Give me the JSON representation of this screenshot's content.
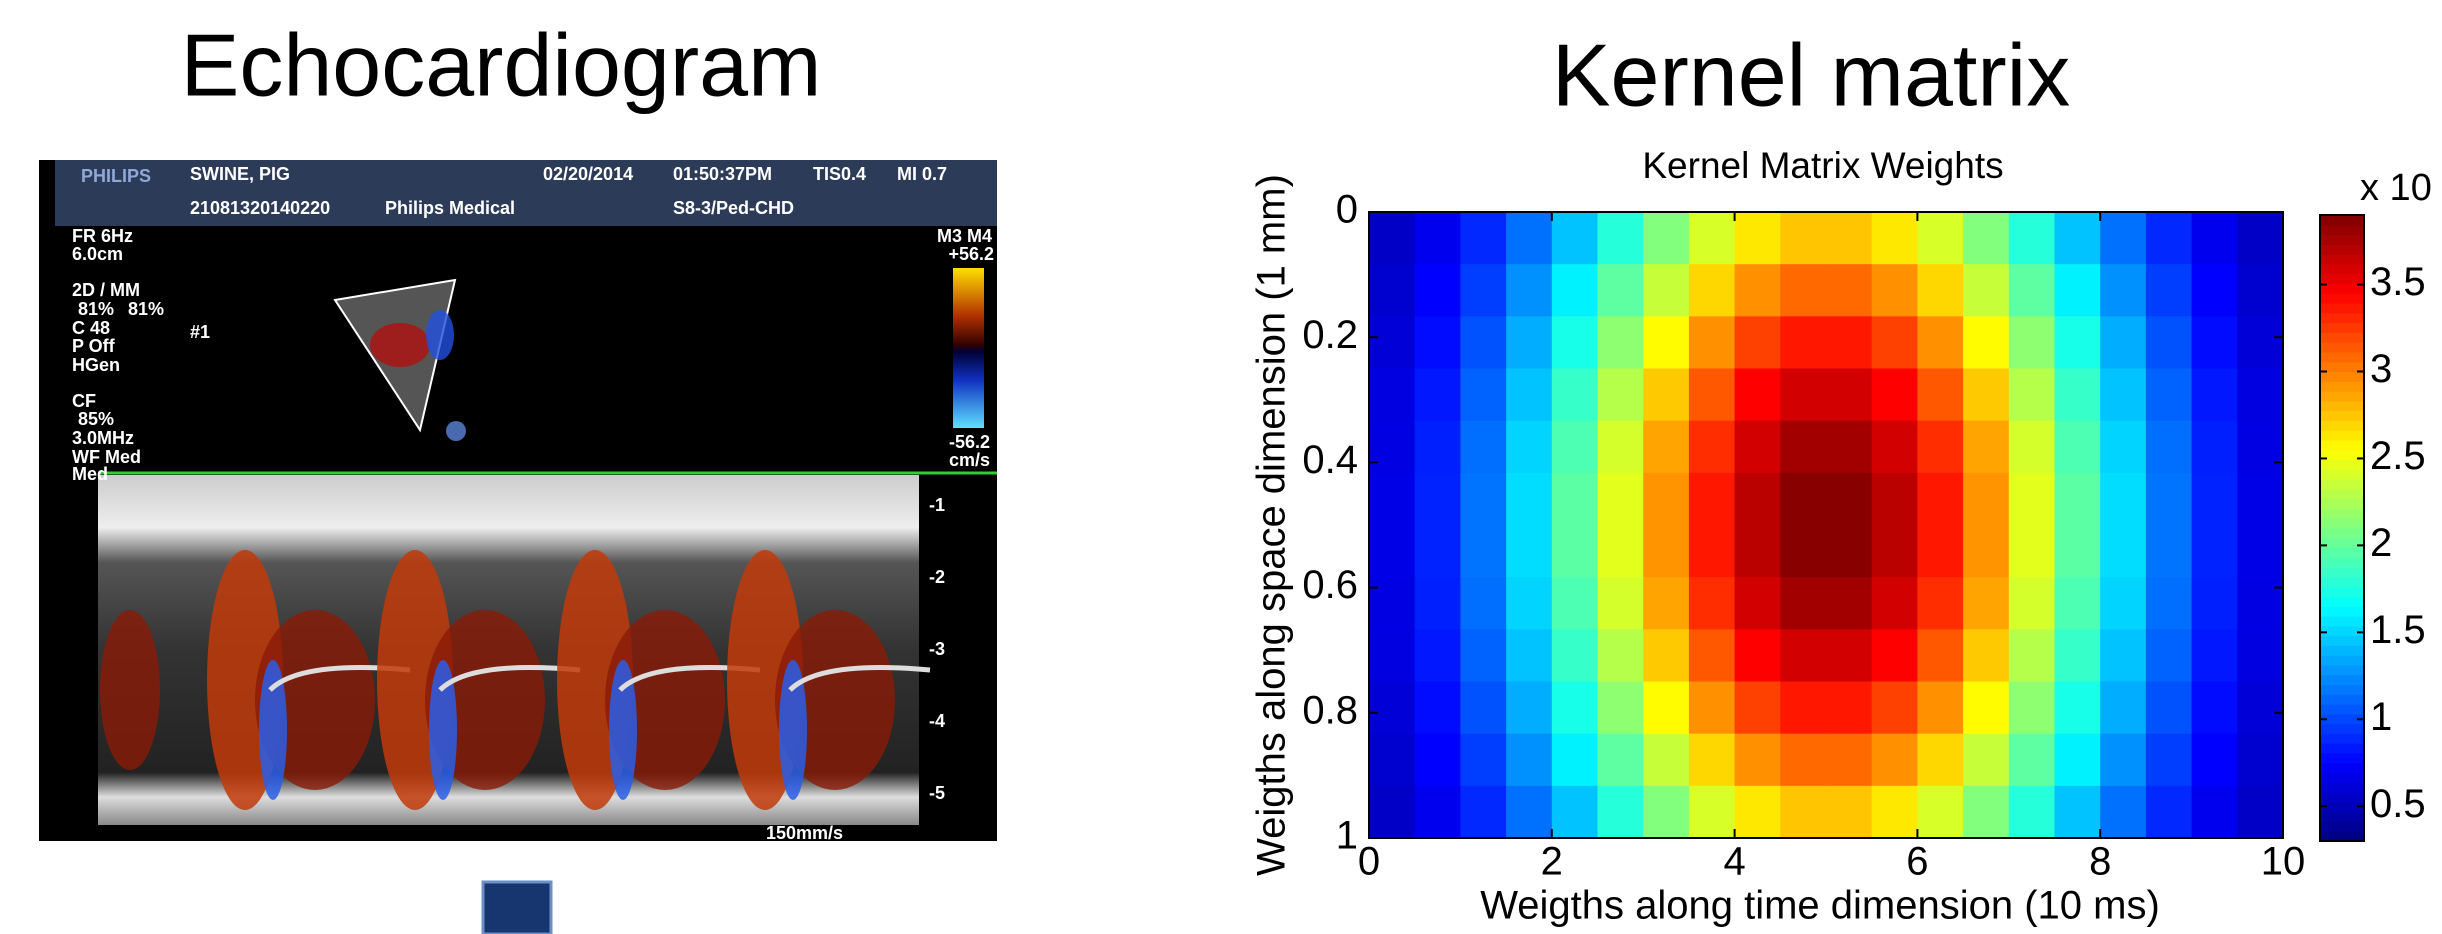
{
  "slide": {
    "left_title": "Echocardiogram",
    "right_title": "Kernel matrix"
  },
  "echocardiogram": {
    "header": {
      "brand": "PHILIPS",
      "patient": "SWINE, PIG",
      "date": "02/20/2014",
      "time": "01:50:37PM",
      "tis": "TIS0.4",
      "mi": "MI 0.7",
      "id": "21081320140220",
      "institution": "Philips Medical",
      "probe": "S8-3/Ped-CHD"
    },
    "settings": [
      "FR 6Hz",
      "6.0cm",
      "2D / MM",
      "81%",
      "81%",
      "C 48",
      "P Off",
      "HGen",
      "CF",
      "85%",
      "3.0MHz",
      "WF Med",
      "Med"
    ],
    "marker": "#1",
    "color_scale": {
      "mode": "M3 M4",
      "top": "+56.2",
      "bottom": "-56.2",
      "unit": "cm/s"
    },
    "depth_ticks": [
      "-1",
      "-2",
      "-3",
      "-4",
      "-5"
    ],
    "sweep": "150mm/s"
  },
  "chart_data": {
    "type": "heatmap",
    "title": "Kernel Matrix Weights",
    "x_label": "Weigths along time dimension (10 ms)",
    "y_label": "Weigths along space dimension (1 mm)",
    "xlim": [
      0,
      10
    ],
    "xticks": [
      0,
      2,
      4,
      6,
      8,
      10
    ],
    "ylim": [
      0,
      1
    ],
    "yticks": [
      0,
      0.2,
      0.4,
      0.6,
      0.8,
      1
    ],
    "y_reversed": true,
    "colormap": "jet",
    "zlim": [
      0.3,
      3.9
    ],
    "zticks": [
      0.5,
      1,
      1.5,
      2,
      2.5,
      3,
      3.5
    ],
    "colorbar_label": "x 10",
    "values": [
      [
        0.55,
        0.69,
        0.89,
        1.15,
        1.44,
        1.78,
        2.11,
        2.41,
        2.63,
        2.75,
        2.75,
        2.63,
        2.41,
        2.11,
        1.78,
        1.44,
        1.15,
        0.89,
        0.69,
        0.55
      ],
      [
        0.58,
        0.75,
        0.97,
        1.26,
        1.6,
        1.98,
        2.35,
        2.69,
        2.94,
        3.08,
        3.08,
        2.94,
        2.69,
        2.35,
        1.98,
        1.6,
        1.26,
        0.97,
        0.75,
        0.58
      ],
      [
        0.61,
        0.79,
        1.04,
        1.36,
        1.73,
        2.15,
        2.56,
        2.94,
        3.22,
        3.37,
        3.37,
        3.22,
        2.94,
        2.56,
        2.15,
        1.73,
        1.36,
        1.04,
        0.79,
        0.61
      ],
      [
        0.64,
        0.83,
        1.1,
        1.44,
        1.84,
        2.29,
        2.74,
        3.14,
        3.45,
        3.61,
        3.61,
        3.45,
        3.14,
        2.74,
        2.29,
        1.84,
        1.44,
        1.1,
        0.83,
        0.64
      ],
      [
        0.65,
        0.86,
        1.14,
        1.5,
        1.92,
        2.4,
        2.87,
        3.29,
        3.61,
        3.78,
        3.78,
        3.61,
        3.29,
        2.87,
        2.4,
        1.92,
        1.5,
        1.14,
        0.86,
        0.65
      ],
      [
        0.66,
        0.87,
        1.16,
        1.53,
        1.97,
        2.45,
        2.93,
        3.37,
        3.69,
        3.87,
        3.87,
        3.69,
        3.37,
        2.93,
        2.45,
        1.97,
        1.53,
        1.16,
        0.87,
        0.66
      ],
      [
        0.66,
        0.87,
        1.16,
        1.53,
        1.97,
        2.45,
        2.93,
        3.37,
        3.69,
        3.87,
        3.87,
        3.69,
        3.37,
        2.93,
        2.45,
        1.97,
        1.53,
        1.16,
        0.87,
        0.66
      ],
      [
        0.65,
        0.86,
        1.14,
        1.5,
        1.92,
        2.4,
        2.87,
        3.29,
        3.61,
        3.78,
        3.78,
        3.61,
        3.29,
        2.87,
        2.4,
        1.92,
        1.5,
        1.14,
        0.86,
        0.65
      ],
      [
        0.64,
        0.83,
        1.1,
        1.44,
        1.84,
        2.29,
        2.74,
        3.14,
        3.45,
        3.61,
        3.61,
        3.45,
        3.14,
        2.74,
        2.29,
        1.84,
        1.44,
        1.1,
        0.83,
        0.64
      ],
      [
        0.61,
        0.79,
        1.04,
        1.36,
        1.73,
        2.15,
        2.56,
        2.94,
        3.22,
        3.37,
        3.37,
        3.22,
        2.94,
        2.56,
        2.15,
        1.73,
        1.36,
        1.04,
        0.79,
        0.61
      ],
      [
        0.58,
        0.75,
        0.97,
        1.26,
        1.6,
        1.98,
        2.35,
        2.69,
        2.94,
        3.08,
        3.08,
        2.94,
        2.69,
        2.35,
        1.98,
        1.6,
        1.26,
        0.97,
        0.75,
        0.58
      ],
      [
        0.55,
        0.69,
        0.89,
        1.15,
        1.44,
        1.78,
        2.11,
        2.41,
        2.63,
        2.75,
        2.75,
        2.63,
        2.41,
        2.11,
        1.78,
        1.44,
        1.15,
        0.89,
        0.69,
        0.55
      ]
    ]
  }
}
